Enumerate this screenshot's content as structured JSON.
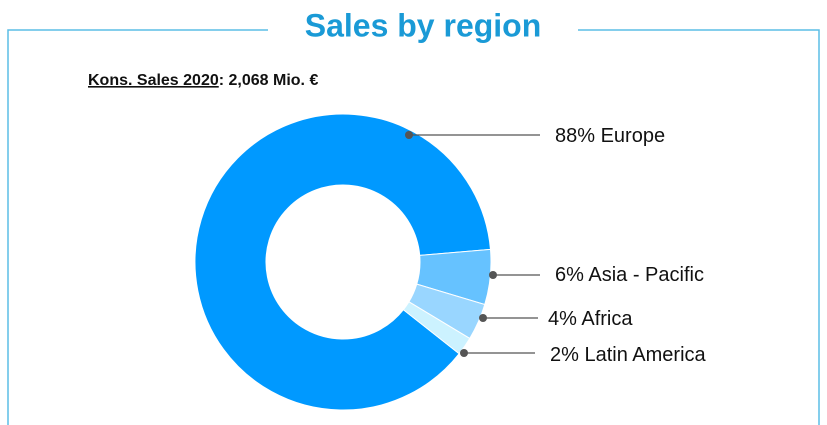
{
  "chart_data": {
    "type": "donut",
    "title": "Sales by region",
    "subtitle_label": "Kons. Sales 2020",
    "subtitle_value": ": 2,068 Mio. €",
    "categories": [
      "Europe",
      "Asia - Pacific",
      "Africa",
      "Latin America"
    ],
    "values": [
      88,
      6,
      4,
      2
    ],
    "value_labels": [
      "88%",
      "6%",
      "4%",
      "2%"
    ],
    "colors": [
      "#0099ff",
      "#66c2ff",
      "#99d6ff",
      "#ccf2ff"
    ]
  }
}
